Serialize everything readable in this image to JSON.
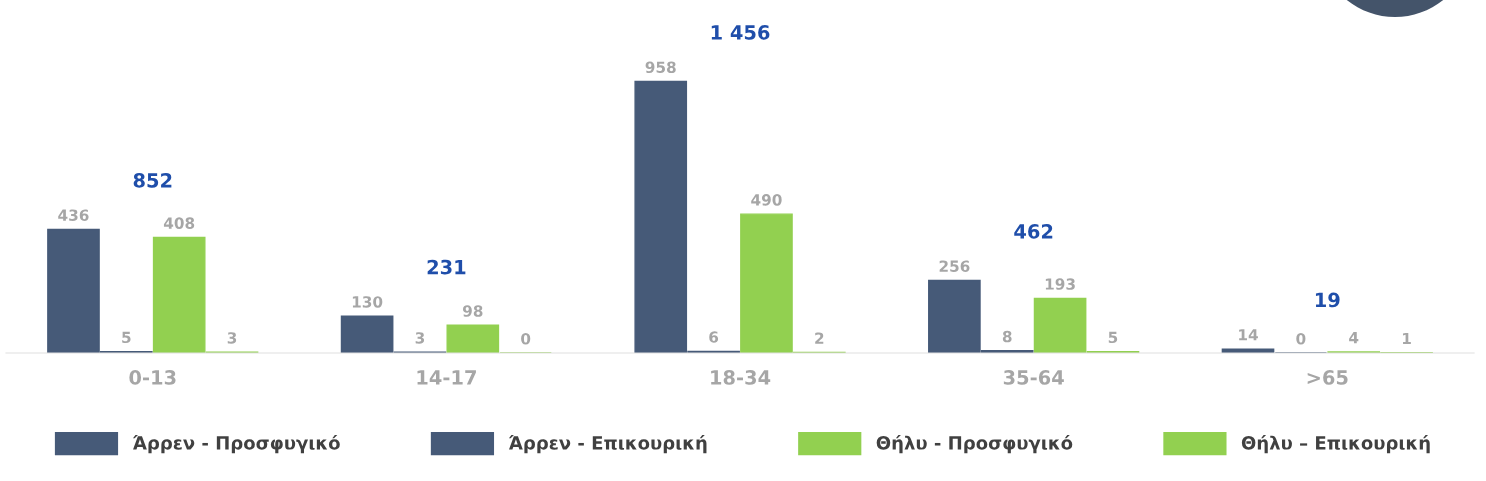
{
  "chart_data": {
    "type": "bar",
    "categories": [
      "0-13",
      "14-17",
      "18-34",
      "35-64",
      ">65"
    ],
    "series": [
      {
        "name": "Άρρεν - Προσφυγικό",
        "color": "#465a78",
        "values": [
          436,
          130,
          958,
          256,
          14
        ]
      },
      {
        "name": "Άρρεν - Επικουρική",
        "color": "#465a78",
        "values": [
          5,
          3,
          6,
          8,
          0
        ]
      },
      {
        "name": "Θήλυ - Προσφυγικό",
        "color": "#92d050",
        "values": [
          408,
          98,
          490,
          193,
          4
        ]
      },
      {
        "name": "Θήλυ – Επικουρική",
        "color": "#92d050",
        "values": [
          3,
          0,
          2,
          5,
          1
        ]
      }
    ],
    "data_labels": true,
    "totals": [
      "852",
      "231",
      "1 456",
      "462",
      "19"
    ],
    "legend": "bottom",
    "grid": false
  }
}
